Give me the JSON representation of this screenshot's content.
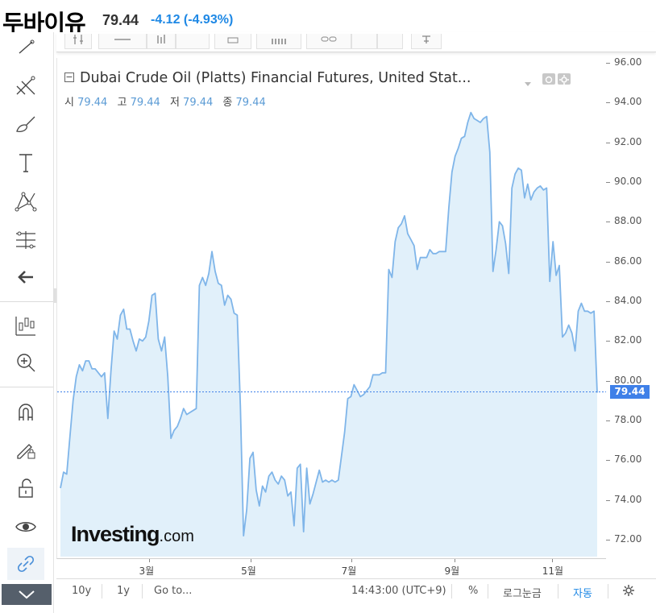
{
  "header": {
    "name": "두바이유",
    "price": "79.44",
    "change": "-4.12 (-4.93%)"
  },
  "legend": {
    "title": "Dubai Crude Oil (Platts) Financial Futures, United Stat...",
    "ohlc": [
      {
        "label": "시",
        "value": "79.44"
      },
      {
        "label": "고",
        "value": "79.44"
      },
      {
        "label": "저",
        "value": "79.44"
      },
      {
        "label": "종",
        "value": "79.44"
      }
    ]
  },
  "price_tag": "79.44",
  "logo": {
    "bold": "Investing",
    "light": ".com"
  },
  "bottom": {
    "range_10y": "10y",
    "range_1y": "1y",
    "goto": "Go to...",
    "time": "14:43:00 (UTC+9)",
    "percent": "%",
    "log": "로그눈금",
    "auto": "자동"
  },
  "colors": {
    "line": "#7fb5e9",
    "fill": "#e1f0fa",
    "accent": "#1e88e5",
    "price_tag": "#3f80e8"
  },
  "chart_data": {
    "type": "area",
    "x_tick_labels": [
      "3월",
      "5월",
      "7월",
      "9월",
      "11월"
    ],
    "y_tick_labels": [
      "96.00",
      "94.00",
      "92.00",
      "90.00",
      "88.00",
      "86.00",
      "84.00",
      "82.00",
      "80.00",
      "78.00",
      "76.00",
      "74.00",
      "72.00"
    ],
    "ylim": [
      71,
      96.2
    ],
    "last_value": 79.44,
    "values": [
      74.6,
      75.4,
      75.3,
      77.2,
      79.0,
      80.2,
      80.8,
      80.5,
      81.0,
      81.0,
      80.6,
      80.6,
      80.4,
      80.2,
      80.4,
      78.1,
      80.5,
      82.5,
      82.1,
      83.3,
      83.6,
      82.6,
      82.6,
      82.0,
      81.5,
      82.1,
      82.0,
      82.2,
      83.0,
      84.3,
      84.4,
      82.1,
      81.5,
      82.2,
      80.2,
      77.1,
      77.5,
      77.7,
      78.1,
      78.6,
      78.3,
      78.4,
      78.5,
      78.6,
      84.8,
      85.2,
      84.8,
      85.4,
      86.5,
      85.5,
      84.9,
      84.8,
      83.8,
      84.3,
      84.1,
      83.4,
      83.3,
      78.7,
      72.2,
      73.5,
      76.1,
      76.4,
      74.5,
      73.7,
      74.7,
      74.4,
      75.2,
      75.4,
      75.0,
      74.8,
      75.2,
      75.0,
      74.2,
      74.4,
      72.7,
      75.6,
      75.8,
      72.4,
      75.6,
      73.8,
      74.3,
      74.9,
      75.5,
      74.9,
      75.0,
      74.9,
      75.0,
      74.9,
      75.0,
      76.2,
      77.4,
      79.1,
      79.2,
      79.8,
      79.5,
      79.2,
      79.3,
      79.5,
      79.7,
      80.3,
      80.3,
      80.3,
      80.4,
      80.4,
      85.6,
      85.2,
      87.0,
      87.7,
      87.9,
      88.3,
      87.4,
      87.1,
      86.8,
      85.6,
      86.2,
      86.2,
      86.2,
      86.6,
      86.4,
      86.4,
      86.5,
      86.5,
      86.5,
      88.7,
      90.5,
      91.3,
      91.7,
      92.2,
      92.3,
      93.0,
      93.5,
      93.2,
      93.1,
      93.0,
      93.2,
      93.3,
      91.5,
      85.5,
      86.6,
      88.0,
      87.8,
      86.9,
      85.4,
      89.7,
      90.4,
      90.7,
      90.6,
      89.2,
      89.9,
      89.1,
      89.5,
      89.7,
      89.8,
      89.6,
      89.7,
      85.0,
      87.0,
      85.3,
      85.8,
      82.2,
      82.4,
      82.8,
      82.4,
      81.5,
      83.5,
      83.9,
      83.5,
      83.5,
      83.4,
      83.5,
      79.4
    ]
  }
}
